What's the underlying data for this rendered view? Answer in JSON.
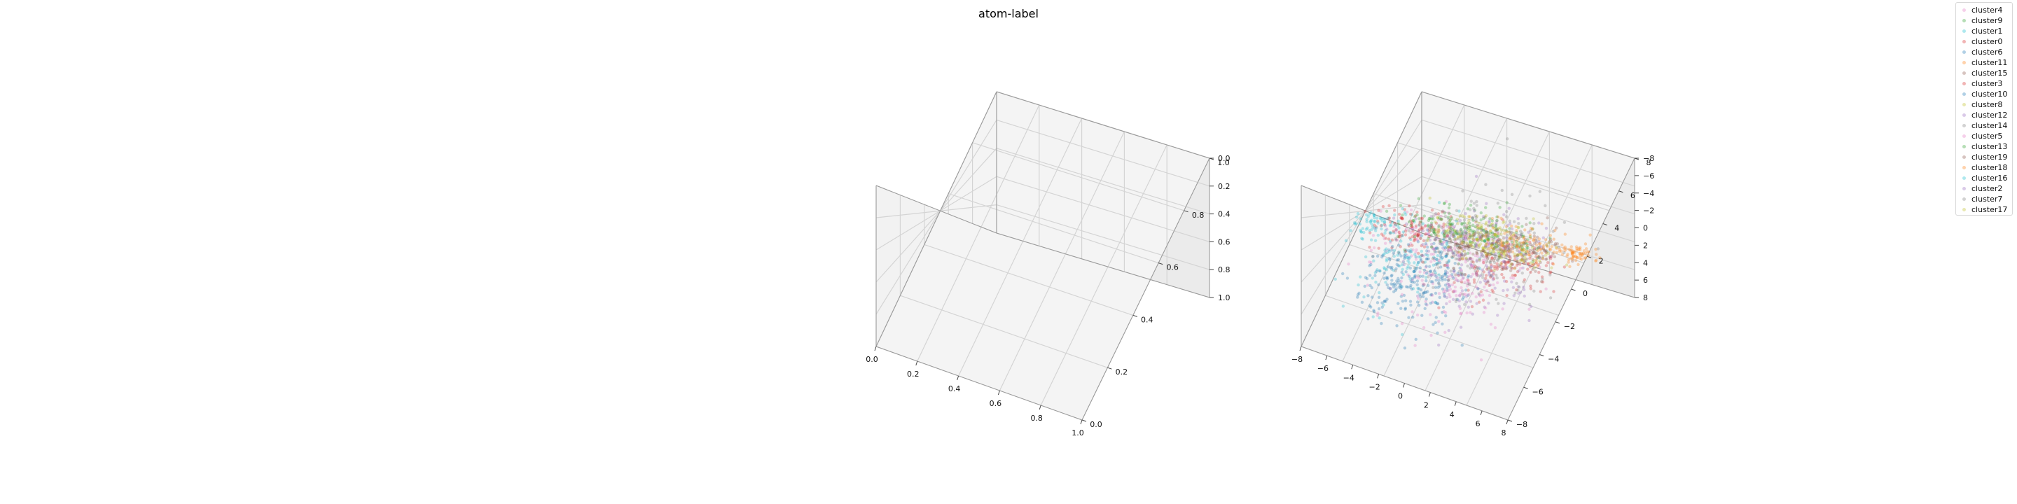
{
  "chart_data": [
    {
      "type": "scatter3d",
      "panel": "left",
      "empty": true,
      "title": "",
      "x": {
        "min": 0.0,
        "max": 1.0,
        "ticks": [
          0.0,
          0.2,
          0.4,
          0.6,
          0.8,
          1.0
        ],
        "tick_labels": [
          "0.0",
          "0.2",
          "0.4",
          "0.6",
          "0.8",
          "1.0"
        ]
      },
      "y": {
        "min": 0.0,
        "max": 1.0,
        "ticks": [
          0.0,
          0.2,
          0.4,
          0.6,
          0.8,
          1.0
        ],
        "tick_labels": [
          "0.0",
          "0.2",
          "0.4",
          "0.6",
          "0.8",
          "1.0"
        ]
      },
      "z": {
        "min": 0.0,
        "max": 1.0,
        "ticks": [
          0.0,
          0.2,
          0.4,
          0.6,
          0.8,
          1.0
        ],
        "tick_labels": [
          "0.0",
          "0.2",
          "0.4",
          "0.6",
          "0.8",
          "1.0"
        ]
      },
      "grid": true
    },
    {
      "type": "scatter3d",
      "panel": "right",
      "title": "",
      "x": {
        "min": -8,
        "max": 8,
        "ticks": [
          -8,
          -6,
          -4,
          -2,
          0,
          2,
          4,
          6,
          8
        ],
        "tick_labels": [
          "−8",
          "−6",
          "−4",
          "−2",
          "0",
          "2",
          "4",
          "6",
          "8"
        ]
      },
      "y": {
        "min": -8,
        "max": 8,
        "ticks": [
          -8,
          -6,
          -4,
          -2,
          0,
          2,
          4,
          6,
          8
        ],
        "tick_labels": [
          "−8",
          "−6",
          "−4",
          "−2",
          "0",
          "2",
          "4",
          "6",
          "8"
        ]
      },
      "z": {
        "min": -8,
        "max": 8,
        "ticks": [
          -8,
          -6,
          -4,
          -2,
          0,
          2,
          4,
          6,
          8
        ],
        "tick_labels": [
          "−8",
          "−6",
          "−4",
          "−2",
          "0",
          "2",
          "4",
          "6",
          "8"
        ]
      },
      "grid": true,
      "marker_alpha": 0.3,
      "series": [
        {
          "name": "cluster4",
          "color": "#e377c2",
          "center": [
            -1.5,
            -1.0,
            0.5
          ],
          "spread": 2.2,
          "n": 120
        },
        {
          "name": "cluster9",
          "color": "#2ca02c",
          "center": [
            0.5,
            2.5,
            2.5
          ],
          "spread": 1.6,
          "n": 120
        },
        {
          "name": "cluster1",
          "color": "#17becf",
          "center": [
            -3.0,
            -2.0,
            -2.5
          ],
          "spread": 2.0,
          "n": 130
        },
        {
          "name": "cluster0",
          "color": "#d62728",
          "center": [
            3.0,
            -1.0,
            0.0
          ],
          "spread": 1.8,
          "n": 130
        },
        {
          "name": "cluster6",
          "color": "#1f77b4",
          "center": [
            -1.0,
            -3.0,
            -4.5
          ],
          "spread": 1.6,
          "n": 140
        },
        {
          "name": "cluster11",
          "color": "#ff7f0e",
          "center": [
            2.5,
            3.0,
            2.0
          ],
          "spread": 1.6,
          "n": 120
        },
        {
          "name": "cluster15",
          "color": "#8c564b",
          "center": [
            0.0,
            0.0,
            0.0
          ],
          "spread": 1.2,
          "n": 90
        },
        {
          "name": "cluster3",
          "color": "#d62728",
          "center": [
            -4.5,
            0.0,
            0.5
          ],
          "spread": 1.5,
          "n": 110
        },
        {
          "name": "cluster10",
          "color": "#1f77b4",
          "center": [
            -2.5,
            -4.0,
            -2.5
          ],
          "spread": 1.6,
          "n": 110
        },
        {
          "name": "cluster8",
          "color": "#bcbd22",
          "center": [
            -1.0,
            3.0,
            3.0
          ],
          "spread": 1.5,
          "n": 100
        },
        {
          "name": "cluster12",
          "color": "#9467bd",
          "center": [
            2.0,
            -2.0,
            -3.0
          ],
          "spread": 1.8,
          "n": 100
        },
        {
          "name": "cluster14",
          "color": "#7f7f7f",
          "center": [
            0.5,
            0.5,
            -1.0
          ],
          "spread": 2.4,
          "n": 120
        },
        {
          "name": "cluster5",
          "color": "#e377c2",
          "center": [
            1.5,
            -3.5,
            -2.0
          ],
          "spread": 2.0,
          "n": 100
        },
        {
          "name": "cluster13",
          "color": "#2ca02c",
          "center": [
            -3.0,
            2.0,
            1.0
          ],
          "spread": 1.6,
          "n": 90
        },
        {
          "name": "cluster19",
          "color": "#8c564b",
          "center": [
            3.5,
            1.5,
            -0.5
          ],
          "spread": 1.4,
          "n": 90
        },
        {
          "name": "cluster18",
          "color": "#ff7f0e",
          "center": [
            6.0,
            4.0,
            2.0
          ],
          "spread": 0.6,
          "n": 60
        },
        {
          "name": "cluster16",
          "color": "#17becf",
          "center": [
            -6.5,
            -1.0,
            1.5
          ],
          "spread": 0.9,
          "n": 60
        },
        {
          "name": "cluster2",
          "color": "#9467bd",
          "center": [
            -0.5,
            1.5,
            1.5
          ],
          "spread": 2.4,
          "n": 100
        },
        {
          "name": "cluster7",
          "color": "#7f7f7f",
          "center": [
            1.0,
            1.0,
            -2.0
          ],
          "spread": 2.8,
          "n": 90
        },
        {
          "name": "cluster17",
          "color": "#bcbd22",
          "center": [
            2.5,
            0.5,
            3.5
          ],
          "spread": 1.8,
          "n": 80
        }
      ]
    }
  ],
  "figure": {
    "title": "atom-label"
  }
}
